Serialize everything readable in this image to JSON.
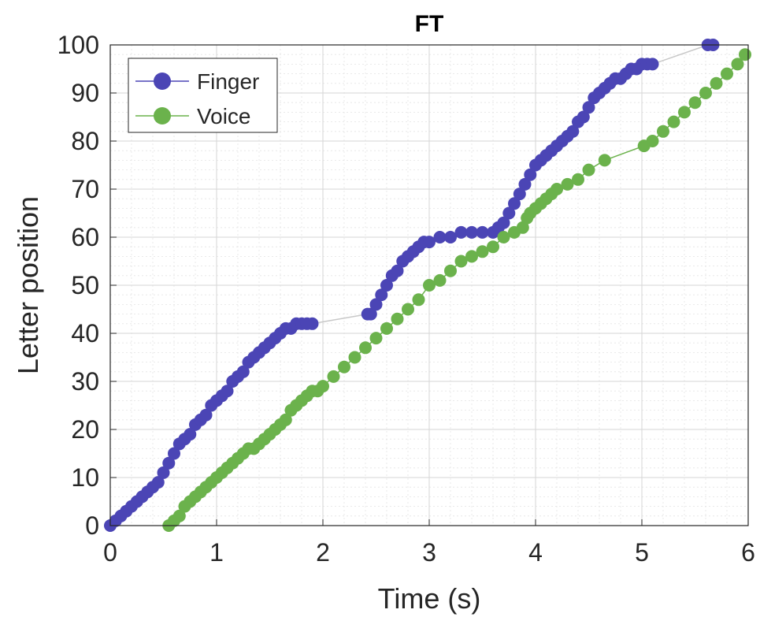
{
  "chart_data": {
    "type": "line",
    "title": "FT",
    "xlabel": "Time (s)",
    "ylabel": "Letter position",
    "xlim": [
      0,
      6
    ],
    "ylim": [
      0,
      100
    ],
    "xticks": [
      0,
      1,
      2,
      3,
      4,
      5,
      6
    ],
    "yticks": [
      0,
      10,
      20,
      30,
      40,
      50,
      60,
      70,
      80,
      90,
      100
    ],
    "grid": true,
    "minor_grid": true,
    "legend_position": "top-left",
    "series": [
      {
        "name": "Finger",
        "color": "#4b45b5",
        "line_color": "#c8c8c8",
        "x": [
          0.0,
          0.05,
          0.1,
          0.15,
          0.2,
          0.25,
          0.3,
          0.35,
          0.4,
          0.45,
          0.5,
          0.55,
          0.6,
          0.65,
          0.7,
          0.75,
          0.8,
          0.85,
          0.9,
          0.95,
          1.0,
          1.05,
          1.1,
          1.15,
          1.2,
          1.25,
          1.3,
          1.35,
          1.4,
          1.45,
          1.5,
          1.55,
          1.6,
          1.65,
          1.7,
          1.75,
          1.8,
          1.85,
          1.9,
          2.42,
          2.45,
          2.5,
          2.55,
          2.6,
          2.65,
          2.7,
          2.75,
          2.8,
          2.85,
          2.9,
          2.95,
          3.0,
          3.1,
          3.2,
          3.3,
          3.4,
          3.5,
          3.6,
          3.65,
          3.7,
          3.75,
          3.8,
          3.85,
          3.9,
          3.95,
          4.0,
          4.05,
          4.1,
          4.15,
          4.2,
          4.25,
          4.3,
          4.35,
          4.4,
          4.45,
          4.5,
          4.55,
          4.6,
          4.65,
          4.7,
          4.75,
          4.8,
          4.85,
          4.9,
          4.95,
          5.0,
          5.05,
          5.1,
          5.62,
          5.67
        ],
        "y": [
          0,
          1,
          2,
          3,
          4,
          5,
          6,
          7,
          8,
          9,
          11,
          13,
          15,
          17,
          18,
          19,
          21,
          22,
          23,
          25,
          26,
          27,
          28,
          30,
          31,
          32,
          34,
          35,
          36,
          37,
          38,
          39,
          40,
          41,
          41,
          42,
          42,
          42,
          42,
          44,
          44,
          46,
          48,
          50,
          52,
          53,
          55,
          56,
          57,
          58,
          59,
          59,
          60,
          60,
          61,
          61,
          61,
          61,
          62,
          63,
          65,
          67,
          69,
          71,
          73,
          75,
          76,
          77,
          78,
          79,
          80,
          81,
          82,
          84,
          85,
          87,
          89,
          90,
          91,
          92,
          93,
          93,
          94,
          95,
          95,
          96,
          96,
          96,
          100,
          100
        ]
      },
      {
        "name": "Voice",
        "color": "#6bb24c",
        "line_color": "#6bb24c",
        "x": [
          0.55,
          0.6,
          0.65,
          0.7,
          0.75,
          0.8,
          0.85,
          0.9,
          0.95,
          1.0,
          1.05,
          1.1,
          1.15,
          1.2,
          1.25,
          1.3,
          1.35,
          1.4,
          1.45,
          1.5,
          1.55,
          1.6,
          1.65,
          1.7,
          1.75,
          1.8,
          1.85,
          1.9,
          1.95,
          2.0,
          2.1,
          2.2,
          2.3,
          2.4,
          2.5,
          2.6,
          2.7,
          2.8,
          2.9,
          3.0,
          3.1,
          3.2,
          3.3,
          3.4,
          3.5,
          3.6,
          3.7,
          3.8,
          3.88,
          3.92,
          3.95,
          4.0,
          4.05,
          4.1,
          4.15,
          4.2,
          4.3,
          4.4,
          4.5,
          4.65,
          5.02,
          5.1,
          5.2,
          5.3,
          5.4,
          5.5,
          5.6,
          5.7,
          5.8,
          5.9,
          5.97
        ],
        "y": [
          0,
          1,
          2,
          4,
          5,
          6,
          7,
          8,
          9,
          10,
          11,
          12,
          13,
          14,
          15,
          16,
          16,
          17,
          18,
          19,
          20,
          21,
          22,
          24,
          25,
          26,
          27,
          28,
          28,
          29,
          31,
          33,
          35,
          37,
          39,
          41,
          43,
          45,
          47,
          50,
          51,
          53,
          55,
          56,
          57,
          58,
          60,
          61,
          62,
          64,
          65,
          66,
          67,
          68,
          69,
          70,
          71,
          72,
          74,
          76,
          79,
          80,
          82,
          84,
          86,
          88,
          90,
          92,
          94,
          96,
          98
        ]
      }
    ]
  }
}
